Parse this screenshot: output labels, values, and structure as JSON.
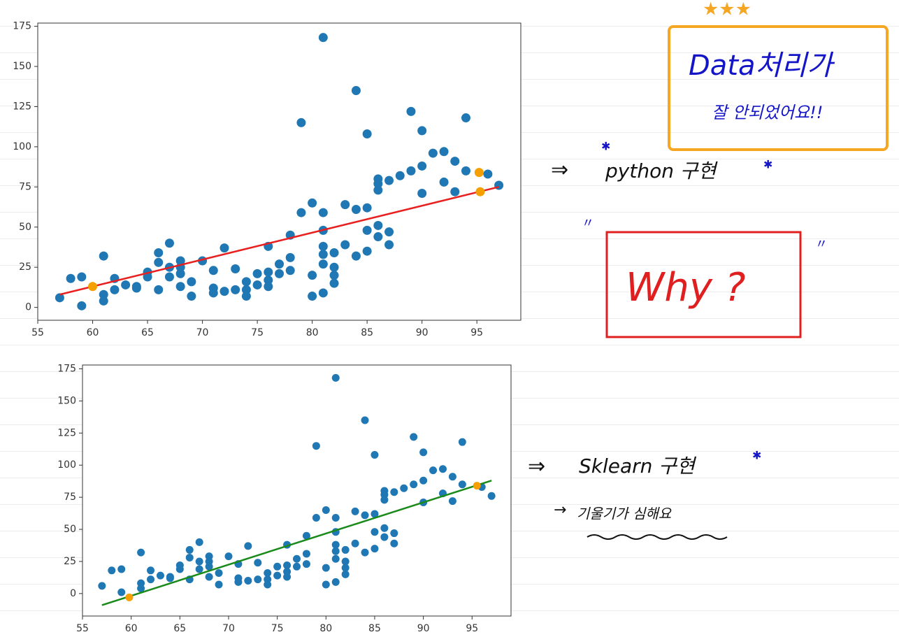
{
  "annotations": [
    "Data처리가",
    "잘 안되었어요!!",
    "python 구현",
    "Why ?",
    "Sklearn 구현",
    "기울기가 심해요"
  ],
  "chart_data": [
    {
      "type": "scatter",
      "xlim": [
        55,
        99
      ],
      "ylim": [
        -8,
        177
      ],
      "xticks": [
        55,
        60,
        65,
        70,
        75,
        80,
        85,
        90,
        95
      ],
      "yticks": [
        0,
        25,
        50,
        75,
        100,
        125,
        150,
        175
      ],
      "series": [
        {
          "mode": "markers",
          "color": "#1f77b4",
          "x": [
            57,
            58,
            59,
            59,
            61,
            61,
            61,
            62,
            62,
            63,
            64,
            64,
            65,
            65,
            66,
            66,
            66,
            67,
            67,
            67,
            68,
            68,
            68,
            68,
            69,
            69,
            70,
            71,
            71,
            71,
            72,
            72,
            73,
            73,
            74,
            74,
            74,
            75,
            75,
            76,
            76,
            76,
            76,
            77,
            77,
            78,
            78,
            78,
            79,
            79,
            80,
            80,
            80,
            81,
            81,
            81,
            81,
            81,
            81,
            81,
            82,
            82,
            82,
            82,
            83,
            83,
            84,
            84,
            84,
            85,
            85,
            85,
            85,
            86,
            86,
            86,
            86,
            86,
            87,
            87,
            87,
            88,
            89,
            89,
            90,
            90,
            90,
            91,
            92,
            92,
            93,
            93,
            94,
            94,
            96,
            97
          ],
          "values": [
            6,
            18,
            19,
            1,
            32,
            8,
            4,
            18,
            11,
            14,
            13,
            12,
            22,
            19,
            34,
            28,
            11,
            40,
            25,
            19,
            29,
            25,
            21,
            13,
            16,
            7,
            29,
            23,
            12,
            9,
            37,
            10,
            24,
            11,
            16,
            11,
            7,
            21,
            14,
            38,
            22,
            17,
            13,
            27,
            21,
            45,
            31,
            23,
            115,
            59,
            65,
            20,
            7,
            168,
            59,
            48,
            38,
            33,
            27,
            9,
            34,
            25,
            20,
            15,
            64,
            39,
            135,
            61,
            32,
            108,
            62,
            48,
            35,
            80,
            77,
            73,
            51,
            44,
            79,
            47,
            39,
            82,
            122,
            85,
            110,
            88,
            71,
            96,
            97,
            78,
            91,
            72,
            118,
            85,
            83,
            76
          ]
        },
        {
          "mode": "line",
          "color": "#e82020",
          "x": [
            57,
            97
          ],
          "values": [
            8,
            75
          ]
        },
        {
          "mode": "markers",
          "color": "#f5a000",
          "x": [
            60,
            95.2,
            95.3
          ],
          "values": [
            13,
            84,
            72
          ]
        }
      ]
    },
    {
      "type": "scatter",
      "xlim": [
        55,
        99
      ],
      "ylim": [
        -17.5,
        178
      ],
      "xticks": [
        55,
        60,
        65,
        70,
        75,
        80,
        85,
        90,
        95
      ],
      "yticks": [
        0,
        25,
        50,
        75,
        100,
        125,
        150,
        175
      ],
      "series": [
        {
          "mode": "markers",
          "color": "#1f77b4",
          "x": [
            57,
            58,
            59,
            59,
            61,
            61,
            61,
            62,
            62,
            63,
            64,
            64,
            65,
            65,
            66,
            66,
            66,
            67,
            67,
            67,
            68,
            68,
            68,
            68,
            69,
            69,
            70,
            71,
            71,
            71,
            72,
            72,
            73,
            73,
            74,
            74,
            74,
            75,
            75,
            76,
            76,
            76,
            76,
            77,
            77,
            78,
            78,
            78,
            79,
            79,
            80,
            80,
            80,
            81,
            81,
            81,
            81,
            81,
            81,
            81,
            82,
            82,
            82,
            82,
            83,
            83,
            84,
            84,
            84,
            85,
            85,
            85,
            85,
            86,
            86,
            86,
            86,
            86,
            87,
            87,
            87,
            88,
            89,
            89,
            90,
            90,
            90,
            91,
            92,
            92,
            93,
            93,
            94,
            94,
            96,
            97
          ],
          "values": [
            6,
            18,
            19,
            1,
            32,
            8,
            4,
            18,
            11,
            14,
            13,
            12,
            22,
            19,
            34,
            28,
            11,
            40,
            25,
            19,
            29,
            25,
            21,
            13,
            16,
            7,
            29,
            23,
            12,
            9,
            37,
            10,
            24,
            11,
            16,
            11,
            7,
            21,
            14,
            38,
            22,
            17,
            13,
            27,
            21,
            45,
            31,
            23,
            115,
            59,
            65,
            20,
            7,
            168,
            59,
            48,
            38,
            33,
            27,
            9,
            34,
            25,
            20,
            15,
            64,
            39,
            135,
            61,
            32,
            108,
            62,
            48,
            35,
            80,
            77,
            73,
            51,
            44,
            79,
            47,
            39,
            82,
            122,
            85,
            110,
            88,
            71,
            96,
            97,
            78,
            91,
            72,
            118,
            85,
            83,
            76
          ]
        },
        {
          "mode": "line",
          "color": "#1a8a1a",
          "x": [
            57,
            97
          ],
          "values": [
            -9,
            88
          ]
        },
        {
          "mode": "markers",
          "color": "#f5a000",
          "x": [
            59.8,
            95.5
          ],
          "values": [
            -3,
            84
          ]
        }
      ]
    }
  ]
}
